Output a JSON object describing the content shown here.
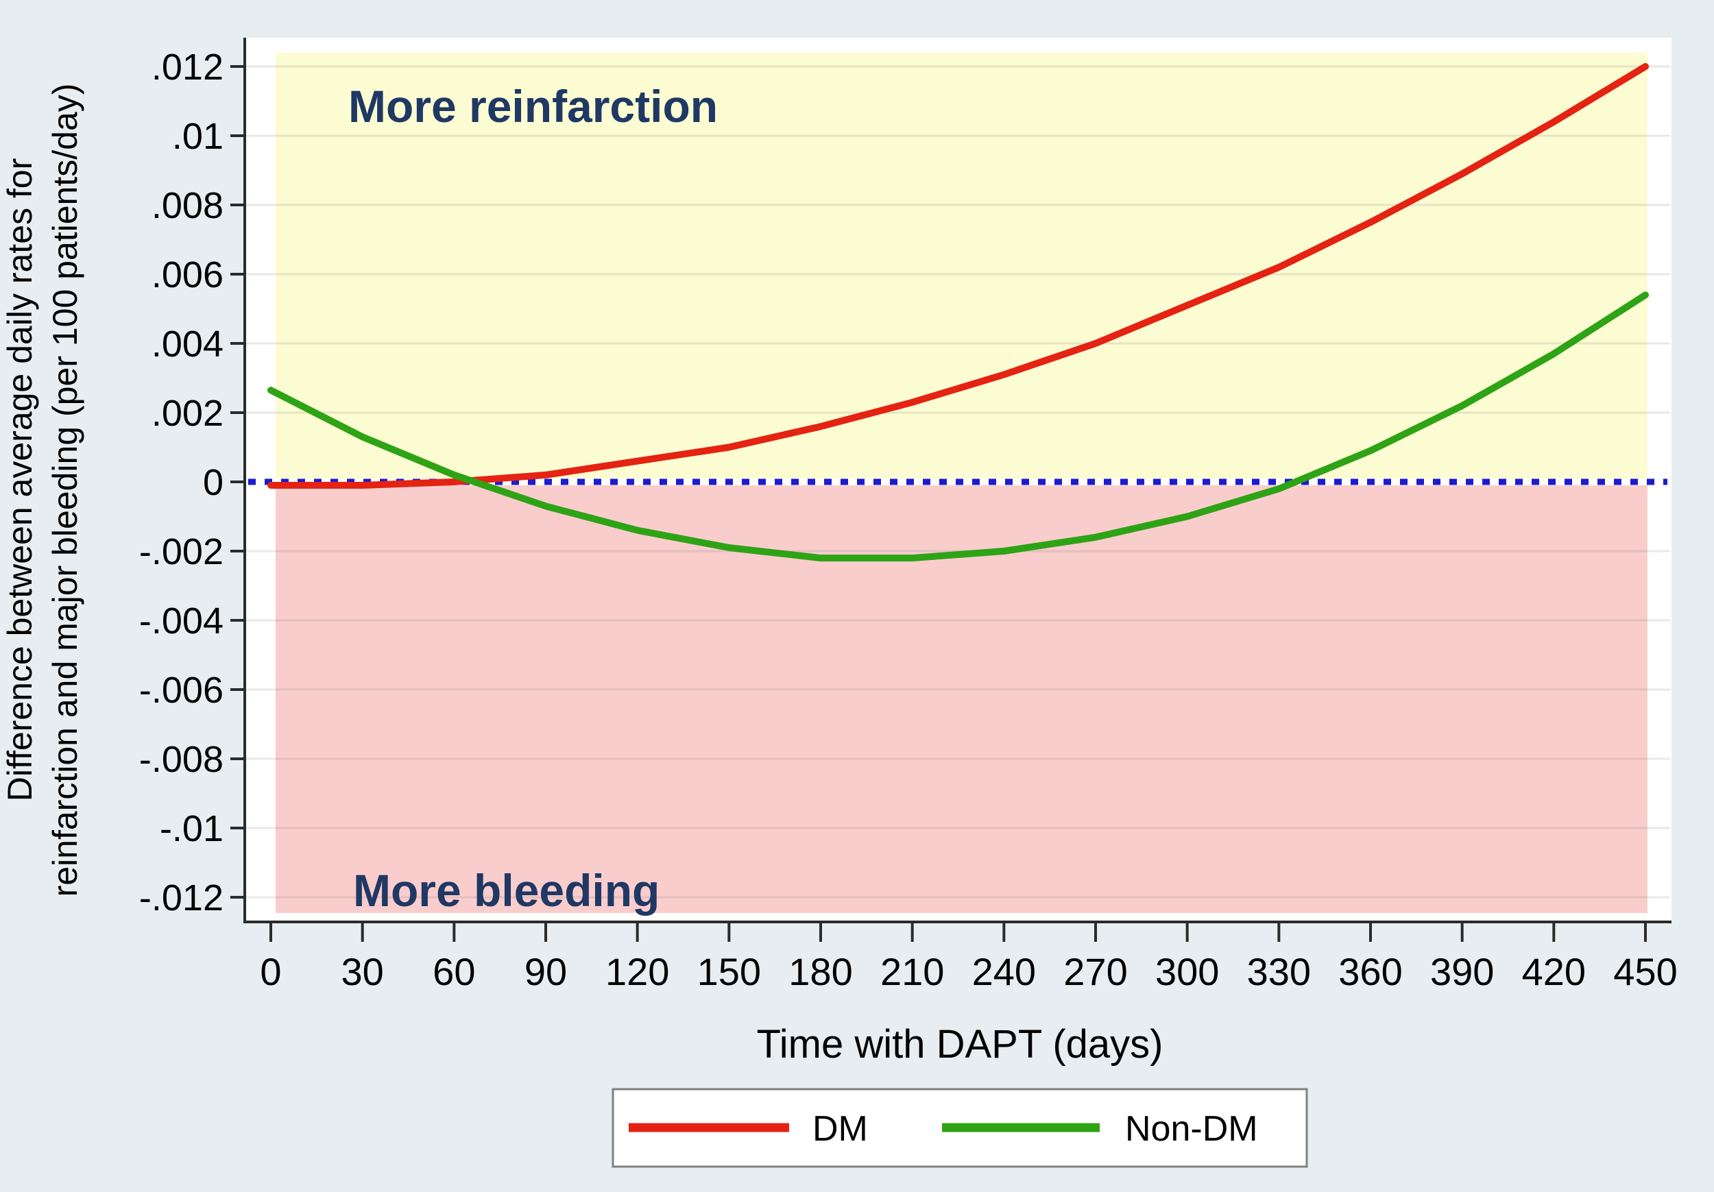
{
  "colors": {
    "background": "#e7edf0",
    "plot_background": "#ffffff",
    "region_positive": "#fcfcd2",
    "region_negative": "#facdcd",
    "dm_line": "#e42313",
    "nondm_line": "#2fa316",
    "zero_line": "#1b1bd0",
    "annotation_text": "#1f3864",
    "axis_line": "#2b2b2b",
    "legend_border": "#808080"
  },
  "chart_data": {
    "type": "line",
    "title": "",
    "xlabel": "Time with DAPT (days)",
    "ylabel_lines": [
      "Difference between average daily rates for",
      "reinfarction and major bleeding (per 100 patients/day)"
    ],
    "xlim": [
      0,
      450
    ],
    "ylim": [
      -0.0124,
      0.0124
    ],
    "grid": "horizontal",
    "x": [
      0,
      30,
      60,
      90,
      120,
      150,
      180,
      210,
      240,
      270,
      300,
      330,
      360,
      390,
      420,
      450
    ],
    "x_tick_labels": [
      "0",
      "30",
      "60",
      "90",
      "120",
      "150",
      "180",
      "210",
      "240",
      "270",
      "300",
      "330",
      "360",
      "390",
      "420",
      "450"
    ],
    "y_ticks": {
      "values": [
        0.012,
        0.01,
        0.008,
        0.006,
        0.004,
        0.002,
        0,
        -0.002,
        -0.004,
        -0.006,
        -0.008,
        -0.01,
        -0.012
      ],
      "labels": [
        ".012",
        ".01",
        ".008",
        ".006",
        ".004",
        ".002",
        "0",
        "-.002",
        "-.004",
        "-.006",
        "-.008",
        "-.01",
        "-.012"
      ]
    },
    "series": [
      {
        "name": "DM",
        "color": "#e42313",
        "values": [
          -0.0001,
          -0.0001,
          0.0,
          0.0002,
          0.0006,
          0.001,
          0.0016,
          0.0023,
          0.0031,
          0.004,
          0.0051,
          0.0062,
          0.0075,
          0.0089,
          0.0104,
          0.012
        ]
      },
      {
        "name": "Non-DM",
        "color": "#2fa316",
        "values": [
          0.00265,
          0.0013,
          0.0002,
          -0.0007,
          -0.0014,
          -0.0019,
          -0.0022,
          -0.0022,
          -0.002,
          -0.0016,
          -0.001,
          -0.0002,
          0.0009,
          0.0022,
          0.0037,
          0.0054
        ]
      }
    ],
    "reference_line": {
      "y": 0,
      "style": "dotted",
      "color": "#1b1bd0"
    },
    "regions": [
      {
        "label": "More reinfarction",
        "range": "y > 0",
        "color": "#fcfcd2"
      },
      {
        "label": "More bleeding",
        "range": "y < 0",
        "color": "#facdcd"
      }
    ],
    "legend": {
      "position": "bottom-center",
      "entries": [
        "DM",
        "Non-DM"
      ]
    }
  }
}
